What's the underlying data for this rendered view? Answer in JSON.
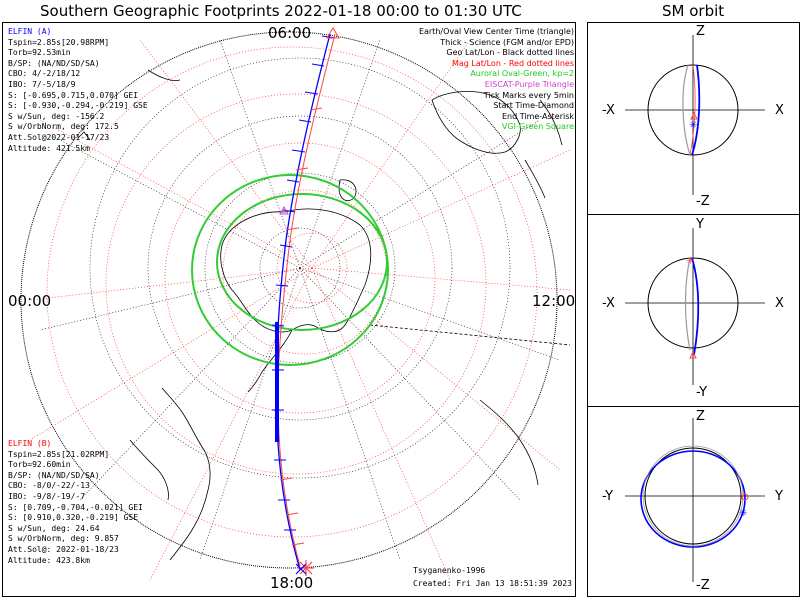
{
  "title": "Southern Geographic Footprints 2022-01-18 00:00 to 01:30 UTC",
  "orbit_title": "SM orbit",
  "clock": {
    "top": "06:00",
    "left": "00:00",
    "right": "12:00",
    "bottom": "18:00"
  },
  "sat_a": {
    "name": "ELFIN (A)",
    "color": "#0000ff",
    "lines": [
      "Tspin=2.85s[20.98RPM]",
      "Torb=92.53min",
      "B/SP: (NA/ND/SD/SA)",
      "CBO: 4/-2/18/12",
      "IBO: 7/-5/18/9",
      "S: [-0.695,0.715,0.070] GEI",
      "S: [-0.930,-0.294,-0.219] GSE",
      "S w/Sun, deg: -156.2",
      "S w/OrbNorm, deg: 172.5",
      "Att.Sol@2022-01-17/23",
      "Altitude: 421.5km"
    ]
  },
  "sat_b": {
    "name": "ELFIN (B)",
    "color": "#ff0000",
    "lines": [
      "Tspin=2.85s[21.02RPM]",
      "Torb=92.60min",
      "B/SP: (NA/ND/SD/SA)",
      "CBO: -8/0/-22/-13",
      "IBO: -9/8/-19/-7",
      "S: [0.709,-0.704,-0.021] GEI",
      "S: [0.910,0.320,-0.219] GSE",
      "S w/Sun, deg: 24.64",
      "S w/OrbNorm, deg: 9.857",
      "Att.Sol@: 2022-01-18/23",
      "Altitude: 423.8km"
    ]
  },
  "legend": [
    {
      "text": "Earth/Oval View Center Time (triangle)",
      "color": "#000000"
    },
    {
      "text": "Thick - Science (FGM and/or EPD)",
      "color": "#000000"
    },
    {
      "text": "Geo Lat/Lon - Black dotted lines",
      "color": "#000000"
    },
    {
      "text": "Mag Lat/Lon - Red dotted lines",
      "color": "#ff0000"
    },
    {
      "text": "Auroral Oval-Green, kp=2",
      "color": "#22cc22"
    },
    {
      "text": "EISCAT-Purple Triangle",
      "color": "#cc44cc"
    },
    {
      "text": "Tick Marks every 5min",
      "color": "#000000"
    },
    {
      "text": "Start Time-Diamond",
      "color": "#000000"
    },
    {
      "text": "End Time-Asterisk",
      "color": "#000000"
    },
    {
      "text": "VGI-Green Square",
      "color": "#22cc22"
    }
  ],
  "footer": {
    "model": "Tsyganenko-1996",
    "created": "Created: Fri Jan 13 18:51:39 2023"
  },
  "orbit_panels": [
    {
      "top": "Z",
      "bottom": "-Z",
      "left": "-X",
      "right": "X"
    },
    {
      "top": "Y",
      "bottom": "-Y",
      "left": "-X",
      "right": "X"
    },
    {
      "top": "Z",
      "bottom": "-Z",
      "left": "-Y",
      "right": "Y"
    }
  ]
}
